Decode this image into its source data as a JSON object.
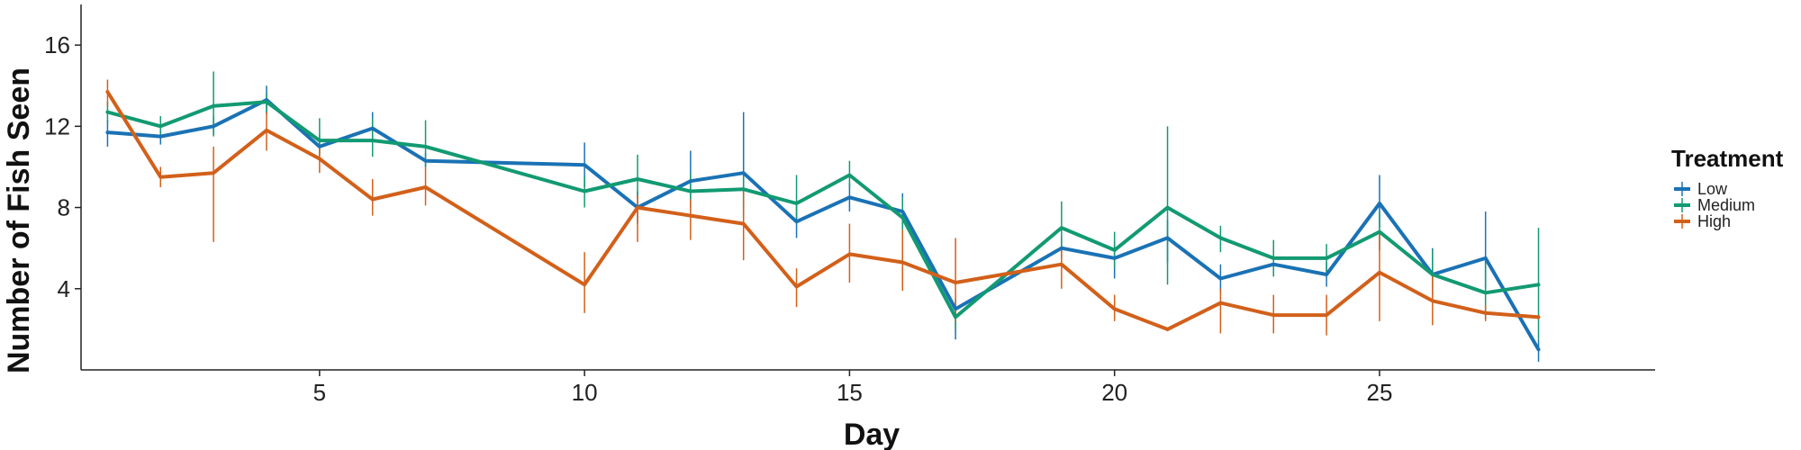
{
  "chart_data": {
    "type": "line",
    "xlabel": "Day",
    "ylabel": "Number of Fish Seen",
    "xlim": [
      0.5,
      30.2
    ],
    "ylim": [
      0,
      18
    ],
    "xticks": [
      5,
      10,
      15,
      20,
      25
    ],
    "yticks": [
      4,
      8,
      12,
      16
    ],
    "grid": false,
    "legend": {
      "title": "Treatment",
      "position": "right"
    },
    "series": [
      {
        "name": "Low",
        "color": "#1a72b5",
        "x": [
          1,
          2,
          3,
          4,
          5,
          6,
          7,
          10,
          11,
          12,
          13,
          14,
          15,
          16,
          17,
          19,
          20,
          21,
          22,
          23,
          24,
          25,
          26,
          27,
          28
        ],
        "y": [
          11.7,
          11.5,
          12.0,
          13.3,
          11.0,
          11.9,
          10.3,
          10.1,
          8.0,
          9.3,
          9.7,
          7.3,
          8.5,
          7.8,
          3.0,
          6.0,
          5.5,
          6.5,
          4.5,
          5.2,
          4.7,
          8.2,
          4.7,
          5.5,
          1.0
        ],
        "err_low": [
          11.0,
          11.1,
          11.6,
          12.6,
          10.6,
          11.2,
          10.0,
          9.0,
          7.2,
          8.4,
          7.5,
          6.5,
          7.8,
          7.0,
          1.5,
          5.5,
          4.5,
          5.3,
          3.8,
          4.6,
          4.1,
          7.0,
          3.7,
          4.0,
          0.4
        ],
        "err_high": [
          12.3,
          12.0,
          12.5,
          14.0,
          11.6,
          12.7,
          10.7,
          11.2,
          8.8,
          10.8,
          12.7,
          8.2,
          9.2,
          8.7,
          3.5,
          6.6,
          6.3,
          7.4,
          5.2,
          5.8,
          5.3,
          9.6,
          6.0,
          7.8,
          1.5
        ]
      },
      {
        "name": "Medium",
        "color": "#129a72",
        "x": [
          1,
          2,
          3,
          4,
          5,
          6,
          7,
          10,
          11,
          12,
          13,
          14,
          15,
          16,
          17,
          19,
          20,
          21,
          22,
          23,
          24,
          25,
          26,
          27,
          28
        ],
        "y": [
          12.7,
          12.0,
          13.0,
          13.2,
          11.3,
          11.3,
          11.0,
          8.8,
          9.4,
          8.8,
          8.9,
          8.2,
          9.6,
          7.5,
          2.6,
          7.0,
          5.9,
          8.0,
          6.5,
          5.5,
          5.5,
          6.8,
          4.7,
          3.8,
          4.2
        ],
        "err_low": [
          12.2,
          11.5,
          11.5,
          12.7,
          10.5,
          10.5,
          10.0,
          8.0,
          8.5,
          8.0,
          8.0,
          7.5,
          9.0,
          6.5,
          2.0,
          6.0,
          5.0,
          4.2,
          5.8,
          4.6,
          4.8,
          5.9,
          4.0,
          2.5,
          1.5
        ],
        "err_high": [
          13.2,
          12.5,
          14.7,
          13.6,
          12.4,
          12.4,
          12.3,
          9.5,
          10.6,
          9.7,
          9.8,
          9.6,
          10.3,
          8.5,
          3.1,
          8.3,
          6.8,
          12.0,
          7.1,
          6.4,
          6.2,
          7.8,
          5.9,
          5.4,
          7.0
        ]
      },
      {
        "name": "High",
        "color": "#d2601a",
        "x": [
          1,
          2,
          3,
          4,
          5,
          6,
          7,
          10,
          11,
          12,
          13,
          14,
          15,
          16,
          17,
          19,
          20,
          21,
          22,
          23,
          24,
          25,
          26,
          27,
          28
        ],
        "y": [
          13.7,
          9.5,
          9.7,
          11.8,
          10.4,
          8.4,
          9.0,
          4.2,
          8.0,
          7.6,
          7.2,
          4.1,
          5.7,
          5.3,
          4.3,
          5.2,
          3.0,
          2.0,
          3.3,
          2.7,
          2.7,
          4.8,
          3.4,
          2.8,
          2.6
        ],
        "err_low": [
          13.0,
          9.0,
          6.3,
          10.8,
          9.7,
          7.6,
          8.1,
          2.8,
          6.3,
          6.4,
          5.4,
          3.1,
          4.3,
          3.9,
          2.4,
          4.0,
          2.4,
          1.9,
          1.8,
          1.8,
          1.7,
          2.4,
          2.2,
          2.4,
          2.5
        ],
        "err_high": [
          14.3,
          10.0,
          11.0,
          12.7,
          11.1,
          9.4,
          10.0,
          5.8,
          8.6,
          8.4,
          8.9,
          5.0,
          7.2,
          6.9,
          6.5,
          6.0,
          3.7,
          2.1,
          4.0,
          3.7,
          3.7,
          6.7,
          4.7,
          3.2,
          2.7
        ]
      }
    ]
  }
}
